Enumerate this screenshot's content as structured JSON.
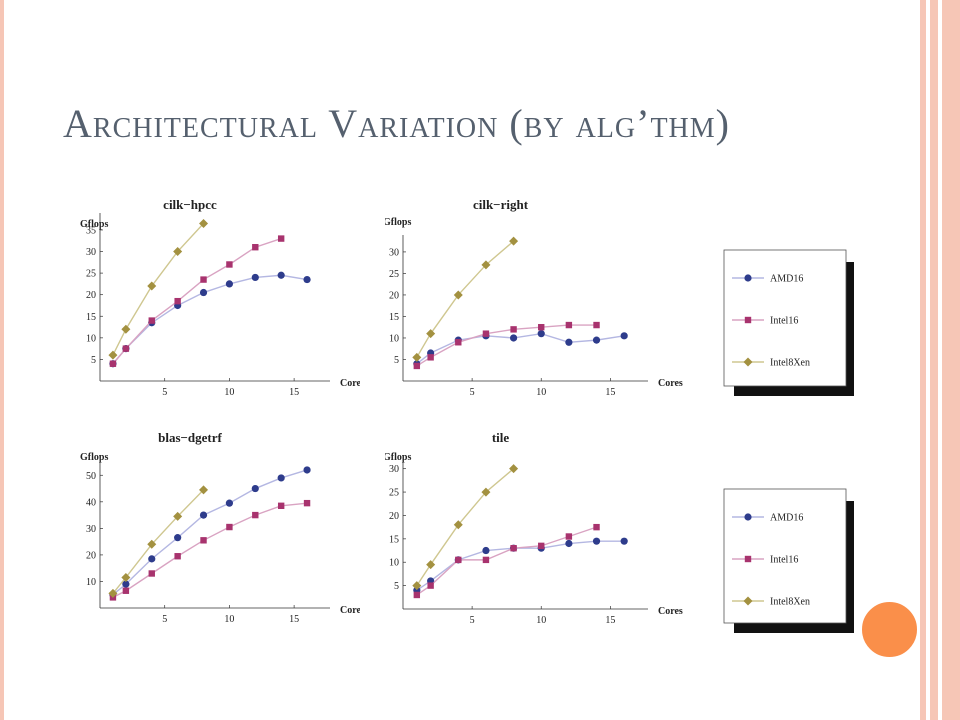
{
  "slide": {
    "title": "Architectural Variation (by alg’thm)",
    "colors": {
      "title": "#55606e",
      "accent": "#fa8f4a",
      "stripe": "#f6c6b6"
    }
  },
  "legend": {
    "items": [
      {
        "name": "AMD16",
        "marker": "circle"
      },
      {
        "name": "Intel16",
        "marker": "square"
      },
      {
        "name": "Intel8Xen",
        "marker": "diamond"
      }
    ]
  },
  "chart_data": [
    {
      "type": "line",
      "title": "cilk−hpcc",
      "xlabel": "Cores",
      "ylabel": "Gflops",
      "xlim": [
        0,
        17
      ],
      "ylim": [
        0,
        38
      ],
      "xticks": [
        5,
        10,
        15
      ],
      "yticks": [
        5,
        10,
        15,
        20,
        25,
        30,
        35
      ],
      "series": [
        {
          "name": "AMD16",
          "color": "#2e3c8c",
          "x": [
            1,
            2,
            4,
            6,
            8,
            10,
            12,
            14,
            16
          ],
          "y": [
            4,
            7.5,
            13.5,
            17.5,
            20.5,
            22.5,
            24,
            24.5,
            23.5
          ]
        },
        {
          "name": "Intel16",
          "color": "#a8336e",
          "x": [
            1,
            2,
            4,
            6,
            8,
            10,
            12,
            14
          ],
          "y": [
            4,
            7.5,
            14,
            18.5,
            23.5,
            27,
            31,
            33
          ]
        },
        {
          "name": "Intel8Xen",
          "color": "#a39140",
          "x": [
            1,
            2,
            4,
            6,
            8
          ],
          "y": [
            6,
            12,
            22,
            30,
            36.5
          ]
        }
      ]
    },
    {
      "type": "line",
      "title": "cilk−right",
      "xlabel": "Cores",
      "ylabel": "Gflops",
      "xlim": [
        0,
        17
      ],
      "ylim": [
        0,
        33
      ],
      "xticks": [
        5,
        10,
        15
      ],
      "yticks": [
        5,
        10,
        15,
        20,
        25,
        30
      ],
      "series": [
        {
          "name": "AMD16",
          "color": "#2e3c8c",
          "x": [
            1,
            2,
            4,
            6,
            8,
            10,
            12,
            14,
            16
          ],
          "y": [
            4,
            6.5,
            9.5,
            10.5,
            10,
            11,
            9,
            9.5,
            10.5
          ]
        },
        {
          "name": "Intel16",
          "color": "#a8336e",
          "x": [
            1,
            2,
            4,
            6,
            8,
            10,
            12,
            14
          ],
          "y": [
            3.5,
            5.5,
            9,
            11,
            12,
            12.5,
            13,
            13
          ]
        },
        {
          "name": "Intel8Xen",
          "color": "#a39140",
          "x": [
            1,
            2,
            4,
            6,
            8
          ],
          "y": [
            5.5,
            11,
            20,
            27,
            32.5
          ]
        }
      ]
    },
    {
      "type": "line",
      "title": "blas−dgetrf",
      "xlabel": "Cores",
      "ylabel": "Gflops",
      "xlim": [
        0,
        17
      ],
      "ylim": [
        0,
        55
      ],
      "xticks": [
        5,
        10,
        15
      ],
      "yticks": [
        10,
        20,
        30,
        40,
        50
      ],
      "series": [
        {
          "name": "AMD16",
          "color": "#2e3c8c",
          "x": [
            1,
            2,
            4,
            6,
            8,
            10,
            12,
            14,
            16
          ],
          "y": [
            5,
            9,
            18.5,
            26.5,
            35,
            39.5,
            45,
            49,
            52
          ]
        },
        {
          "name": "Intel16",
          "color": "#a8336e",
          "x": [
            1,
            2,
            4,
            6,
            8,
            10,
            12,
            14,
            16
          ],
          "y": [
            4,
            6.5,
            13,
            19.5,
            25.5,
            30.5,
            35,
            38.5,
            39.5
          ]
        },
        {
          "name": "Intel8Xen",
          "color": "#a39140",
          "x": [
            1,
            2,
            4,
            6,
            8
          ],
          "y": [
            5.5,
            11.5,
            24,
            34.5,
            44.5
          ]
        }
      ]
    },
    {
      "type": "line",
      "title": "tile",
      "xlabel": "Cores",
      "ylabel": "Gflops",
      "xlim": [
        0,
        17
      ],
      "ylim": [
        0,
        31
      ],
      "xticks": [
        5,
        10,
        15
      ],
      "yticks": [
        5,
        10,
        15,
        20,
        25,
        30
      ],
      "series": [
        {
          "name": "AMD16",
          "color": "#2e3c8c",
          "x": [
            1,
            2,
            4,
            6,
            8,
            10,
            12,
            14,
            16
          ],
          "y": [
            4,
            6,
            10.5,
            12.5,
            13,
            13,
            14,
            14.5,
            14.5
          ]
        },
        {
          "name": "Intel16",
          "color": "#a8336e",
          "x": [
            1,
            2,
            4,
            6,
            8,
            10,
            12,
            14
          ],
          "y": [
            3,
            5,
            10.5,
            10.5,
            13,
            13.5,
            15.5,
            17.5
          ]
        },
        {
          "name": "Intel8Xen",
          "color": "#a39140",
          "x": [
            1,
            2,
            4,
            6,
            8
          ],
          "y": [
            5,
            9.5,
            18,
            25,
            30
          ]
        }
      ]
    }
  ]
}
